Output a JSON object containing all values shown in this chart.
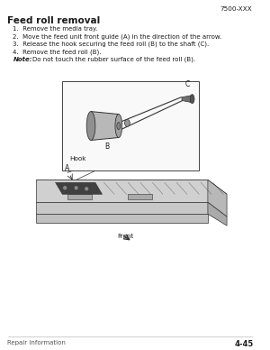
{
  "page_label": "7500-XXX",
  "title": "Feed roll removal",
  "steps": [
    "1.  Remove the media tray.",
    "2.  Move the feed unit front guide (A) in the direction of the arrow.",
    "3.  Release the hook securing the feed roll (B) to the shaft (C).",
    "4.  Remove the feed roll (B)."
  ],
  "note_label": "Note:",
  "note_text": "Do not touch the rubber surface of the feed roll (B).",
  "footer_left": "Repair information",
  "footer_right": "4-45",
  "front_label": "Front",
  "label_A": "A",
  "label_B": "B",
  "label_C": "C",
  "label_Hook": "Hook",
  "bg_color": "#ffffff",
  "text_color": "#1a1a1a",
  "border_color": "#444444",
  "line_color": "#333333"
}
